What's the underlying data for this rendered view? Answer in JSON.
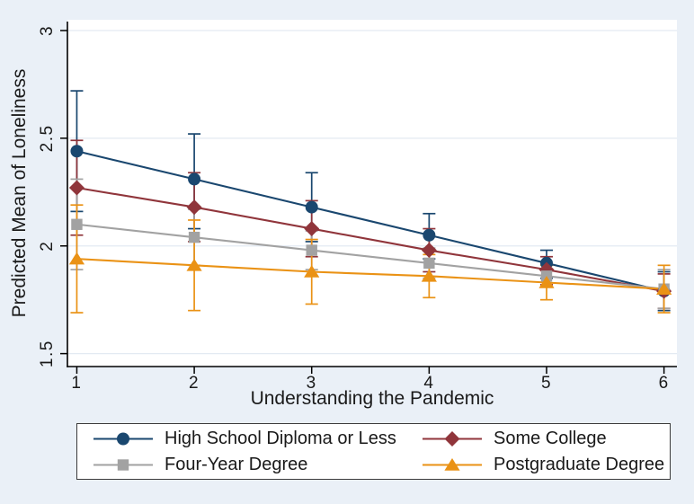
{
  "chart_data": {
    "type": "line",
    "title": "",
    "xlabel": "Understanding the Pandemic",
    "ylabel": "Predicted Mean of Loneliness",
    "x": [
      1,
      2,
      3,
      4,
      5,
      6
    ],
    "xtick_labels": [
      "1",
      "2",
      "3",
      "4",
      "5",
      "6"
    ],
    "ytick_values": [
      1.5,
      2,
      2.5,
      3
    ],
    "ytick_labels": [
      "1.5",
      "2",
      "2.5",
      "3"
    ],
    "xlim": [
      0.92,
      6.11
    ],
    "ylim": [
      1.44,
      3.05
    ],
    "grid": true,
    "legend_position": "bottom",
    "error_bars": true,
    "series": [
      {
        "name": "High School Diploma or Less",
        "marker": "circle",
        "color": "#1a476f",
        "values": [
          2.44,
          2.31,
          2.18,
          2.05,
          1.92,
          1.79
        ],
        "ci_low": [
          2.16,
          2.08,
          2.02,
          1.94,
          1.85,
          1.7
        ],
        "ci_high": [
          2.72,
          2.52,
          2.34,
          2.15,
          1.98,
          1.88
        ]
      },
      {
        "name": "Some College",
        "marker": "diamond",
        "color": "#90353b",
        "values": [
          2.27,
          2.18,
          2.08,
          1.98,
          1.89,
          1.79
        ],
        "ci_low": [
          2.05,
          2.02,
          1.95,
          1.88,
          1.82,
          1.71
        ],
        "ci_high": [
          2.49,
          2.34,
          2.21,
          2.08,
          1.95,
          1.87
        ]
      },
      {
        "name": "Four-Year Degree",
        "marker": "square",
        "color": "#a2a2a2",
        "values": [
          2.1,
          2.04,
          1.98,
          1.92,
          1.86,
          1.8
        ],
        "ci_low": [
          1.89,
          1.91,
          1.89,
          1.85,
          1.81,
          1.71
        ],
        "ci_high": [
          2.31,
          2.17,
          2.07,
          1.99,
          1.91,
          1.89
        ]
      },
      {
        "name": "Postgraduate Degree",
        "marker": "triangle",
        "color": "#ea9215",
        "values": [
          1.94,
          1.91,
          1.88,
          1.86,
          1.83,
          1.8
        ],
        "ci_low": [
          1.69,
          1.7,
          1.73,
          1.76,
          1.75,
          1.69
        ],
        "ci_high": [
          2.19,
          2.12,
          2.03,
          1.96,
          1.91,
          1.91
        ]
      }
    ]
  },
  "colors": {
    "background": "#eaf0f7",
    "plot_background": "#ffffff",
    "gridline": "#e3eaf2",
    "axis": "#000000",
    "text": "#1a1a1a",
    "legend_border": "#3b3b3b",
    "legend_background": "#ffffff"
  }
}
